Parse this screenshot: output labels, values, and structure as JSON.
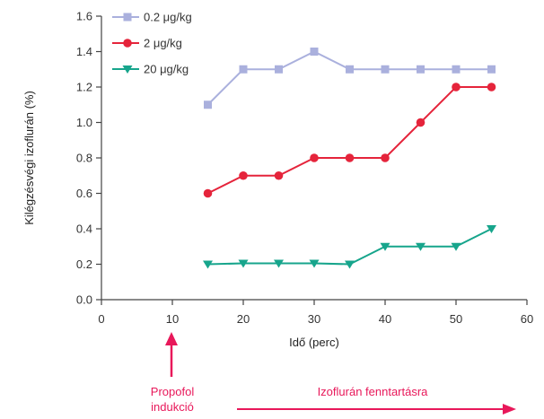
{
  "chart_data": {
    "type": "line",
    "xlabel": "Idő (perc)",
    "ylabel": "Kilégzésvégi izoflurán (%)",
    "xlim": [
      0,
      60
    ],
    "ylim": [
      0,
      1.6
    ],
    "x_ticks": [
      "0",
      "10",
      "20",
      "30",
      "40",
      "50",
      "60"
    ],
    "y_ticks": [
      "0.0",
      "0.2",
      "0.4",
      "0.6",
      "0.8",
      "1.0",
      "1.2",
      "1.4",
      "1.6"
    ],
    "grid": false,
    "legend_position": "top-left",
    "x": [
      15,
      20,
      25,
      30,
      35,
      40,
      45,
      50,
      55
    ],
    "series": [
      {
        "name": "0.2 μg/kg",
        "color": "#aab0dd",
        "marker": "square",
        "values": [
          1.1,
          1.3,
          1.3,
          1.4,
          1.3,
          1.3,
          1.3,
          1.3,
          1.3
        ]
      },
      {
        "name": "2 μg/kg",
        "color": "#e5243b",
        "marker": "circle",
        "values": [
          0.6,
          0.7,
          0.7,
          0.8,
          0.8,
          0.8,
          1.0,
          1.2,
          1.2
        ]
      },
      {
        "name": "20 μg/kg",
        "color": "#17a58c",
        "marker": "triangle-down",
        "values": [
          0.2,
          0.205,
          0.205,
          0.205,
          0.2,
          0.3,
          0.3,
          0.3,
          0.4
        ]
      }
    ],
    "annotations": {
      "induction_line1": "Propofol",
      "induction_line2": "indukció",
      "maintenance": "Izoflurán fenntartásra",
      "color": "#e8185a"
    }
  }
}
